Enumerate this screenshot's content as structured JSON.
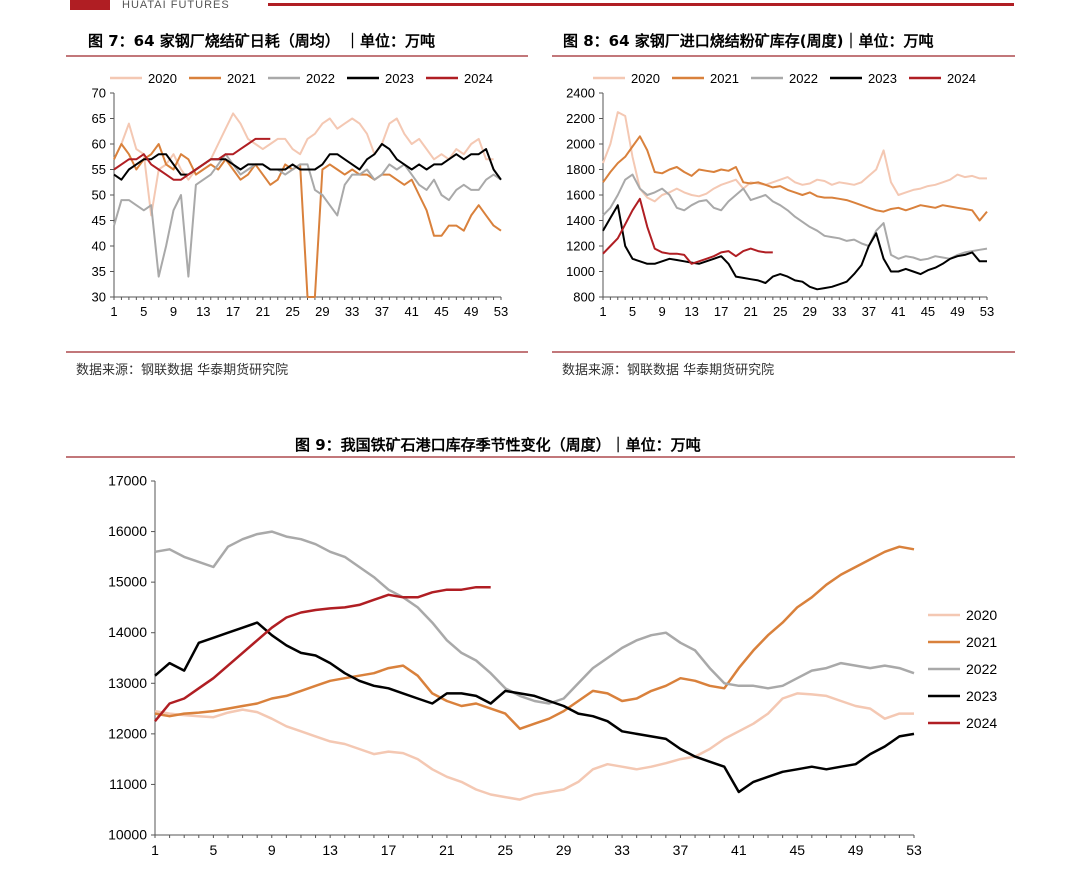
{
  "header": {
    "logo_text": "HUATAI FUTURES"
  },
  "colors": {
    "brand": "#b01e23",
    "s2020": "#f4c8b3",
    "s2021": "#d9813c",
    "s2022": "#a9a9a9",
    "s2023": "#000000",
    "s2024": "#b01e23"
  },
  "chart1": {
    "title": "图 7：64 家钢厂烧结矿日耗（周均） ｜单位：万吨",
    "source": "数据来源：钢联数据  华泰期货研究院"
  },
  "chart2": {
    "title": "图 8：64 家钢厂进口烧结粉矿库存(周度)｜单位：万吨",
    "source": "数据来源：钢联数据  华泰期货研究院"
  },
  "chart3": {
    "title": "图 9：我国铁矿石港口库存季节性变化（周度）｜单位：万吨"
  },
  "chart_data": [
    {
      "type": "line",
      "x_ticks": [
        1,
        5,
        9,
        13,
        17,
        21,
        25,
        29,
        33,
        37,
        41,
        45,
        49,
        53
      ],
      "y_ticks": [
        30,
        35,
        40,
        45,
        50,
        55,
        60,
        65,
        70
      ],
      "ylim": [
        30,
        70
      ],
      "xlim": [
        1,
        53
      ],
      "legend": "top",
      "series": [
        {
          "name": "2020",
          "color": "#f4c8b3",
          "values": [
            57,
            60,
            64,
            59,
            58,
            46,
            55,
            56,
            58,
            55,
            53,
            55,
            56,
            57,
            60,
            63,
            66,
            64,
            61,
            60,
            59,
            60,
            61,
            61,
            59,
            58,
            61,
            62,
            64,
            65,
            63,
            64,
            65,
            64,
            62,
            58,
            60,
            64,
            65,
            62,
            60,
            61,
            59,
            57,
            58,
            57,
            59,
            58,
            60,
            61,
            57,
            57,
            null
          ]
        },
        {
          "name": "2021",
          "color": "#d9813c",
          "values": [
            57,
            60,
            58,
            55,
            57,
            58,
            60,
            56,
            55,
            58,
            57,
            54,
            55,
            56,
            55,
            57,
            55,
            53,
            54,
            56,
            54,
            52,
            53,
            56,
            55,
            56,
            30,
            30,
            55,
            56,
            55,
            54,
            55,
            54,
            54,
            53,
            54,
            54,
            53,
            52,
            53,
            50,
            47,
            42,
            42,
            44,
            44,
            43,
            46,
            48,
            46,
            44,
            43
          ]
        },
        {
          "name": "2022",
          "color": "#a9a9a9",
          "values": [
            44,
            49,
            49,
            48,
            47,
            48,
            34,
            40,
            47,
            50,
            34,
            52,
            53,
            54,
            56,
            58,
            56,
            54,
            55,
            56,
            56,
            55,
            55,
            54,
            55,
            56,
            56,
            51,
            50,
            48,
            46,
            52,
            54,
            54,
            55,
            53,
            54,
            56,
            55,
            56,
            54,
            52,
            51,
            53,
            50,
            49,
            51,
            52,
            51,
            51,
            53,
            54,
            53
          ]
        },
        {
          "name": "2023",
          "color": "#000000",
          "values": [
            54,
            53,
            55,
            56,
            57,
            57,
            58,
            58,
            56,
            54,
            54,
            55,
            56,
            57,
            57,
            57,
            56,
            55,
            56,
            56,
            56,
            55,
            55,
            55,
            56,
            55,
            55,
            55,
            56,
            58,
            58,
            57,
            56,
            55,
            57,
            58,
            60,
            59,
            57,
            56,
            55,
            56,
            55,
            56,
            56,
            57,
            58,
            57,
            58,
            58,
            59,
            55,
            53
          ]
        },
        {
          "name": "2024",
          "color": "#b01e23",
          "values": [
            55,
            56,
            57,
            57,
            58,
            56,
            55,
            54,
            53,
            53,
            54,
            55,
            56,
            57,
            57,
            58,
            58,
            59,
            60,
            61,
            61,
            61,
            null,
            null,
            null,
            null,
            null,
            null,
            null,
            null,
            null,
            null,
            null,
            null,
            null,
            null,
            null,
            null,
            null,
            null,
            null,
            null,
            null,
            null,
            null,
            null,
            null,
            null,
            null,
            null,
            null,
            null,
            null
          ]
        }
      ]
    },
    {
      "type": "line",
      "x_ticks": [
        1,
        5,
        9,
        13,
        17,
        21,
        25,
        29,
        33,
        37,
        41,
        45,
        49,
        53
      ],
      "y_ticks": [
        800,
        1000,
        1200,
        1400,
        1600,
        1800,
        2000,
        2200,
        2400
      ],
      "ylim": [
        800,
        2400
      ],
      "xlim": [
        1,
        53
      ],
      "legend": "top",
      "series": [
        {
          "name": "2020",
          "color": "#f4c8b3",
          "values": [
            1850,
            2000,
            2250,
            2220,
            1900,
            1650,
            1580,
            1550,
            1600,
            1620,
            1650,
            1620,
            1600,
            1590,
            1610,
            1650,
            1680,
            1700,
            1720,
            1650,
            1700,
            1690,
            1680,
            1700,
            1720,
            1740,
            1700,
            1680,
            1690,
            1720,
            1710,
            1680,
            1700,
            1690,
            1680,
            1700,
            1750,
            1800,
            1950,
            1700,
            1600,
            1620,
            1640,
            1650,
            1670,
            1680,
            1700,
            1720,
            1760,
            1740,
            1750,
            1730,
            1730
          ]
        },
        {
          "name": "2021",
          "color": "#d9813c",
          "values": [
            1700,
            1780,
            1850,
            1900,
            1980,
            2060,
            1950,
            1780,
            1770,
            1800,
            1820,
            1780,
            1750,
            1800,
            1790,
            1780,
            1800,
            1790,
            1820,
            1700,
            1690,
            1700,
            1680,
            1660,
            1670,
            1640,
            1620,
            1600,
            1620,
            1590,
            1580,
            1580,
            1570,
            1560,
            1540,
            1520,
            1500,
            1480,
            1470,
            1490,
            1500,
            1480,
            1500,
            1520,
            1510,
            1500,
            1520,
            1510,
            1500,
            1490,
            1480,
            1400,
            1470
          ]
        },
        {
          "name": "2022",
          "color": "#a9a9a9",
          "values": [
            1440,
            1500,
            1600,
            1720,
            1760,
            1650,
            1600,
            1620,
            1650,
            1600,
            1500,
            1480,
            1520,
            1550,
            1560,
            1500,
            1480,
            1550,
            1600,
            1650,
            1560,
            1580,
            1600,
            1550,
            1520,
            1480,
            1430,
            1390,
            1350,
            1320,
            1280,
            1270,
            1260,
            1240,
            1250,
            1220,
            1200,
            1320,
            1380,
            1130,
            1100,
            1120,
            1110,
            1090,
            1100,
            1120,
            1110,
            1100,
            1130,
            1150,
            1160,
            1170,
            1180
          ]
        },
        {
          "name": "2023",
          "color": "#000000",
          "values": [
            1320,
            1420,
            1520,
            1200,
            1100,
            1080,
            1060,
            1060,
            1080,
            1100,
            1090,
            1080,
            1070,
            1060,
            1080,
            1100,
            1120,
            1060,
            960,
            950,
            940,
            930,
            910,
            960,
            980,
            960,
            930,
            920,
            880,
            860,
            870,
            880,
            900,
            920,
            980,
            1050,
            1200,
            1300,
            1100,
            1000,
            1000,
            1020,
            1000,
            980,
            1010,
            1030,
            1060,
            1100,
            1120,
            1130,
            1150,
            1080,
            1080
          ]
        },
        {
          "name": "2024",
          "color": "#b01e23",
          "values": [
            1140,
            1200,
            1260,
            1370,
            1480,
            1570,
            1350,
            1180,
            1150,
            1140,
            1140,
            1130,
            1060,
            1080,
            1100,
            1120,
            1150,
            1160,
            1120,
            1160,
            1180,
            1160,
            1150,
            1150,
            null,
            null,
            null,
            null,
            null,
            null,
            null,
            null,
            null,
            null,
            null,
            null,
            null,
            null,
            null,
            null,
            null,
            null,
            null,
            null,
            null,
            null,
            null,
            null,
            null,
            null,
            null,
            null,
            null
          ]
        }
      ]
    },
    {
      "type": "line",
      "x_ticks": [
        1,
        5,
        9,
        13,
        17,
        21,
        25,
        29,
        33,
        37,
        41,
        45,
        49,
        53
      ],
      "y_ticks": [
        10000,
        11000,
        12000,
        13000,
        14000,
        15000,
        16000,
        17000
      ],
      "ylim": [
        10000,
        17000
      ],
      "xlim": [
        1,
        53
      ],
      "legend": "right",
      "series": [
        {
          "name": "2020",
          "color": "#f4c8b3",
          "values": [
            12450,
            12400,
            12370,
            12350,
            12330,
            12420,
            12480,
            12430,
            12300,
            12150,
            12050,
            11950,
            11850,
            11800,
            11700,
            11600,
            11650,
            11620,
            11500,
            11300,
            11150,
            11050,
            10900,
            10800,
            10750,
            10700,
            10800,
            10850,
            10900,
            11050,
            11300,
            11400,
            11350,
            11300,
            11350,
            11420,
            11500,
            11550,
            11700,
            11900,
            12050,
            12200,
            12400,
            12700,
            12800,
            12780,
            12750,
            12650,
            12550,
            12500,
            12300,
            12400,
            12400
          ]
        },
        {
          "name": "2021",
          "color": "#d9813c",
          "values": [
            12400,
            12350,
            12400,
            12420,
            12450,
            12500,
            12550,
            12600,
            12700,
            12750,
            12850,
            12950,
            13050,
            13100,
            13150,
            13200,
            13300,
            13350,
            13150,
            12800,
            12650,
            12550,
            12600,
            12500,
            12400,
            12100,
            12200,
            12300,
            12450,
            12650,
            12850,
            12800,
            12650,
            12700,
            12850,
            12950,
            13100,
            13050,
            12950,
            12900,
            13300,
            13650,
            13950,
            14200,
            14500,
            14700,
            14950,
            15150,
            15300,
            15450,
            15600,
            15700,
            15650
          ]
        },
        {
          "name": "2022",
          "color": "#a9a9a9",
          "values": [
            15600,
            15650,
            15500,
            15400,
            15300,
            15700,
            15850,
            15950,
            16000,
            15900,
            15850,
            15750,
            15600,
            15500,
            15300,
            15100,
            14850,
            14700,
            14500,
            14200,
            13850,
            13600,
            13450,
            13200,
            12900,
            12750,
            12650,
            12600,
            12700,
            13000,
            13300,
            13500,
            13700,
            13850,
            13950,
            14000,
            13800,
            13650,
            13300,
            13000,
            12950,
            12950,
            12900,
            12950,
            13100,
            13250,
            13300,
            13400,
            13350,
            13300,
            13350,
            13300,
            13200
          ]
        },
        {
          "name": "2023",
          "color": "#000000",
          "values": [
            13150,
            13400,
            13250,
            13800,
            13900,
            14000,
            14100,
            14200,
            13950,
            13750,
            13600,
            13550,
            13400,
            13200,
            13050,
            12950,
            12900,
            12800,
            12700,
            12600,
            12800,
            12800,
            12750,
            12600,
            12850,
            12800,
            12750,
            12650,
            12550,
            12400,
            12350,
            12250,
            12050,
            12000,
            11950,
            11900,
            11700,
            11550,
            11450,
            11350,
            10850,
            11050,
            11150,
            11250,
            11300,
            11350,
            11300,
            11350,
            11400,
            11600,
            11750,
            11950,
            12000
          ]
        },
        {
          "name": "2024",
          "color": "#b01e23",
          "values": [
            12250,
            12600,
            12700,
            12900,
            13100,
            13350,
            13600,
            13850,
            14100,
            14300,
            14400,
            14450,
            14480,
            14500,
            14550,
            14650,
            14750,
            14700,
            14700,
            14800,
            14850,
            14850,
            14900,
            14900,
            null,
            null,
            null,
            null,
            null,
            null,
            null,
            null,
            null,
            null,
            null,
            null,
            null,
            null,
            null,
            null,
            null,
            null,
            null,
            null,
            null,
            null,
            null,
            null,
            null,
            null,
            null,
            null,
            null
          ]
        }
      ]
    }
  ]
}
